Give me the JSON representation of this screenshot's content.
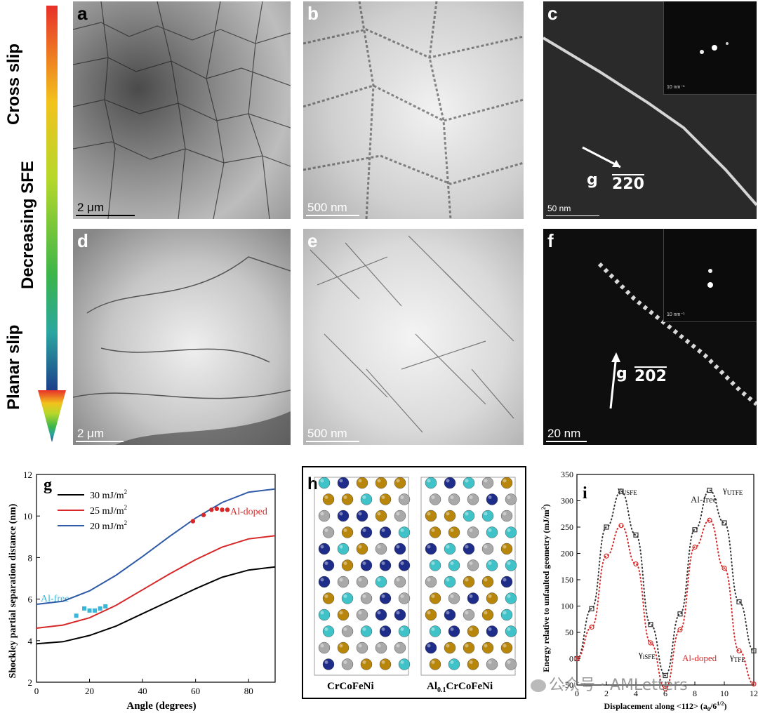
{
  "sidebar": {
    "top_label": "Cross slip",
    "middle_label": "Decreasing SFE",
    "bottom_label": "Planar slip"
  },
  "panels": {
    "a": {
      "letter": "a",
      "scale": "2 μm"
    },
    "b": {
      "letter": "b",
      "scale": "500 nm"
    },
    "c": {
      "letter": "c",
      "scale": "50 nm",
      "inset_scale": "10 nm⁻¹",
      "g_label": "g",
      "g_vector": "220"
    },
    "d": {
      "letter": "d",
      "scale": "2 μm"
    },
    "e": {
      "letter": "e",
      "scale": "500 nm"
    },
    "f": {
      "letter": "f",
      "scale": "20 nm",
      "inset_scale": "10 nm⁻¹",
      "g_label": "g",
      "g_vector": "202"
    },
    "h": {
      "letter": "h",
      "left_caption": "CrCoFeNi",
      "right_caption_prefix": "Al",
      "right_caption_sub": "0.1",
      "right_caption_suffix": "CrCoFeNi"
    }
  },
  "colors": {
    "black_curve": "#000000",
    "red_curve": "#d62828",
    "blue_curve": "#2e5aa6",
    "al_free_marker": "#39b6d8",
    "al_doped_marker": "#d62828",
    "atom_gold": "#b8860b",
    "atom_navy": "#1f2d8a",
    "atom_cyan": "#3fc3c9",
    "atom_gray": "#a9a9a9"
  },
  "chart_data": [
    {
      "type": "line",
      "panel": "g",
      "xlabel": "Angle (degrees)",
      "ylabel": "Shockley partial separation distance (nm)",
      "xlim": [
        0,
        90
      ],
      "ylim": [
        2,
        12
      ],
      "xticks": [
        0,
        20,
        40,
        60,
        80
      ],
      "yticks": [
        2,
        4,
        6,
        8,
        10,
        12
      ],
      "legend_position": "top-left",
      "series": [
        {
          "name": "30 mJ/m²",
          "color": "#000000",
          "x": [
            0,
            10,
            20,
            30,
            40,
            50,
            60,
            70,
            80,
            90
          ],
          "y": [
            3.85,
            3.95,
            4.25,
            4.7,
            5.3,
            5.9,
            6.5,
            7.05,
            7.4,
            7.55
          ]
        },
        {
          "name": "25 mJ/m²",
          "color": "#d62828",
          "x": [
            0,
            10,
            20,
            30,
            40,
            50,
            60,
            70,
            80,
            90
          ],
          "y": [
            4.6,
            4.75,
            5.1,
            5.7,
            6.45,
            7.2,
            7.9,
            8.5,
            8.9,
            9.05
          ]
        },
        {
          "name": "20 mJ/m²",
          "color": "#2e5aa6",
          "x": [
            0,
            10,
            20,
            30,
            40,
            50,
            60,
            70,
            80,
            90
          ],
          "y": [
            5.75,
            5.9,
            6.4,
            7.15,
            8.05,
            9.0,
            9.9,
            10.65,
            11.15,
            11.3
          ]
        }
      ],
      "markers": [
        {
          "name": "Al-free",
          "color": "#39b6d8",
          "shape": "square",
          "x": [
            15,
            18,
            20,
            22,
            24,
            26
          ],
          "y": [
            5.2,
            5.55,
            5.45,
            5.45,
            5.55,
            5.65
          ]
        },
        {
          "name": "Al-doped",
          "color": "#d62828",
          "shape": "circle",
          "x": [
            59,
            63,
            66,
            68,
            70,
            72
          ],
          "y": [
            9.75,
            10.05,
            10.3,
            10.35,
            10.3,
            10.3
          ]
        }
      ],
      "annotations": [
        "Al-free",
        "Al-doped"
      ]
    },
    {
      "type": "scatter",
      "panel": "i",
      "xlabel": "Displacement along <112> (a₀/6¹ᐟ²)",
      "ylabel": "Energy relative to unfaulted geometry (mJ/m²)",
      "xlim": [
        0,
        12
      ],
      "ylim": [
        -50,
        350
      ],
      "xticks": [
        0,
        2,
        4,
        6,
        8,
        10,
        12
      ],
      "yticks": [
        -50,
        0,
        50,
        100,
        150,
        200,
        250,
        300,
        350
      ],
      "series": [
        {
          "name": "Al-free",
          "color": "#333333",
          "marker": "square",
          "x": [
            0,
            1,
            2,
            3,
            4,
            5,
            6,
            7,
            8,
            9,
            10,
            11,
            12
          ],
          "y": [
            0,
            95,
            250,
            318,
            235,
            65,
            -32,
            85,
            245,
            320,
            258,
            108,
            15
          ]
        },
        {
          "name": "Al-doped",
          "color": "#d62828",
          "marker": "circle",
          "x": [
            0,
            1,
            2,
            3,
            4,
            5,
            6,
            7,
            8,
            9,
            10,
            11,
            12
          ],
          "y": [
            0,
            60,
            195,
            253,
            180,
            30,
            -57,
            55,
            212,
            263,
            172,
            15,
            -48
          ]
        }
      ],
      "annotations": [
        "γUSFE",
        "γUTFE",
        "γISFE",
        "γTFE",
        "Al-free",
        "Al-doped"
      ]
    }
  ],
  "chart_text": {
    "g_letter": "g",
    "g_legend_1": "30 mJ/m",
    "g_legend_2": "25 mJ/m",
    "g_legend_3": "20 mJ/m",
    "g_legend_sup": "2",
    "g_alfree": "Al-free",
    "g_aldoped": "Al-doped",
    "g_xlabel": "Angle (degrees)",
    "g_ylabel": "Shockley partial separation distance (nm)",
    "i_letter": "i",
    "i_usfe": "γ",
    "i_usfe_sub": "USFE",
    "i_utfe": "γ",
    "i_utfe_sub": "UTFE",
    "i_isfe": "γ",
    "i_isfe_sub": "iSFE",
    "i_tfe": "γ",
    "i_tfe_sub": "TFE",
    "i_alfree": "Al-free",
    "i_aldoped": "Al-doped",
    "i_xlabel_main": "Displacement along <112> (a",
    "i_xlabel_sub": "0",
    "i_xlabel_end": "/6",
    "i_xlabel_sup": "1/2",
    "i_xlabel_close": ")",
    "i_ylabel": "Energy relative to unfaulted geometry (mJ/m",
    "i_ylabel_sup": "2",
    "i_ylabel_close": ")"
  },
  "watermark": "公众号 · AMLetters"
}
